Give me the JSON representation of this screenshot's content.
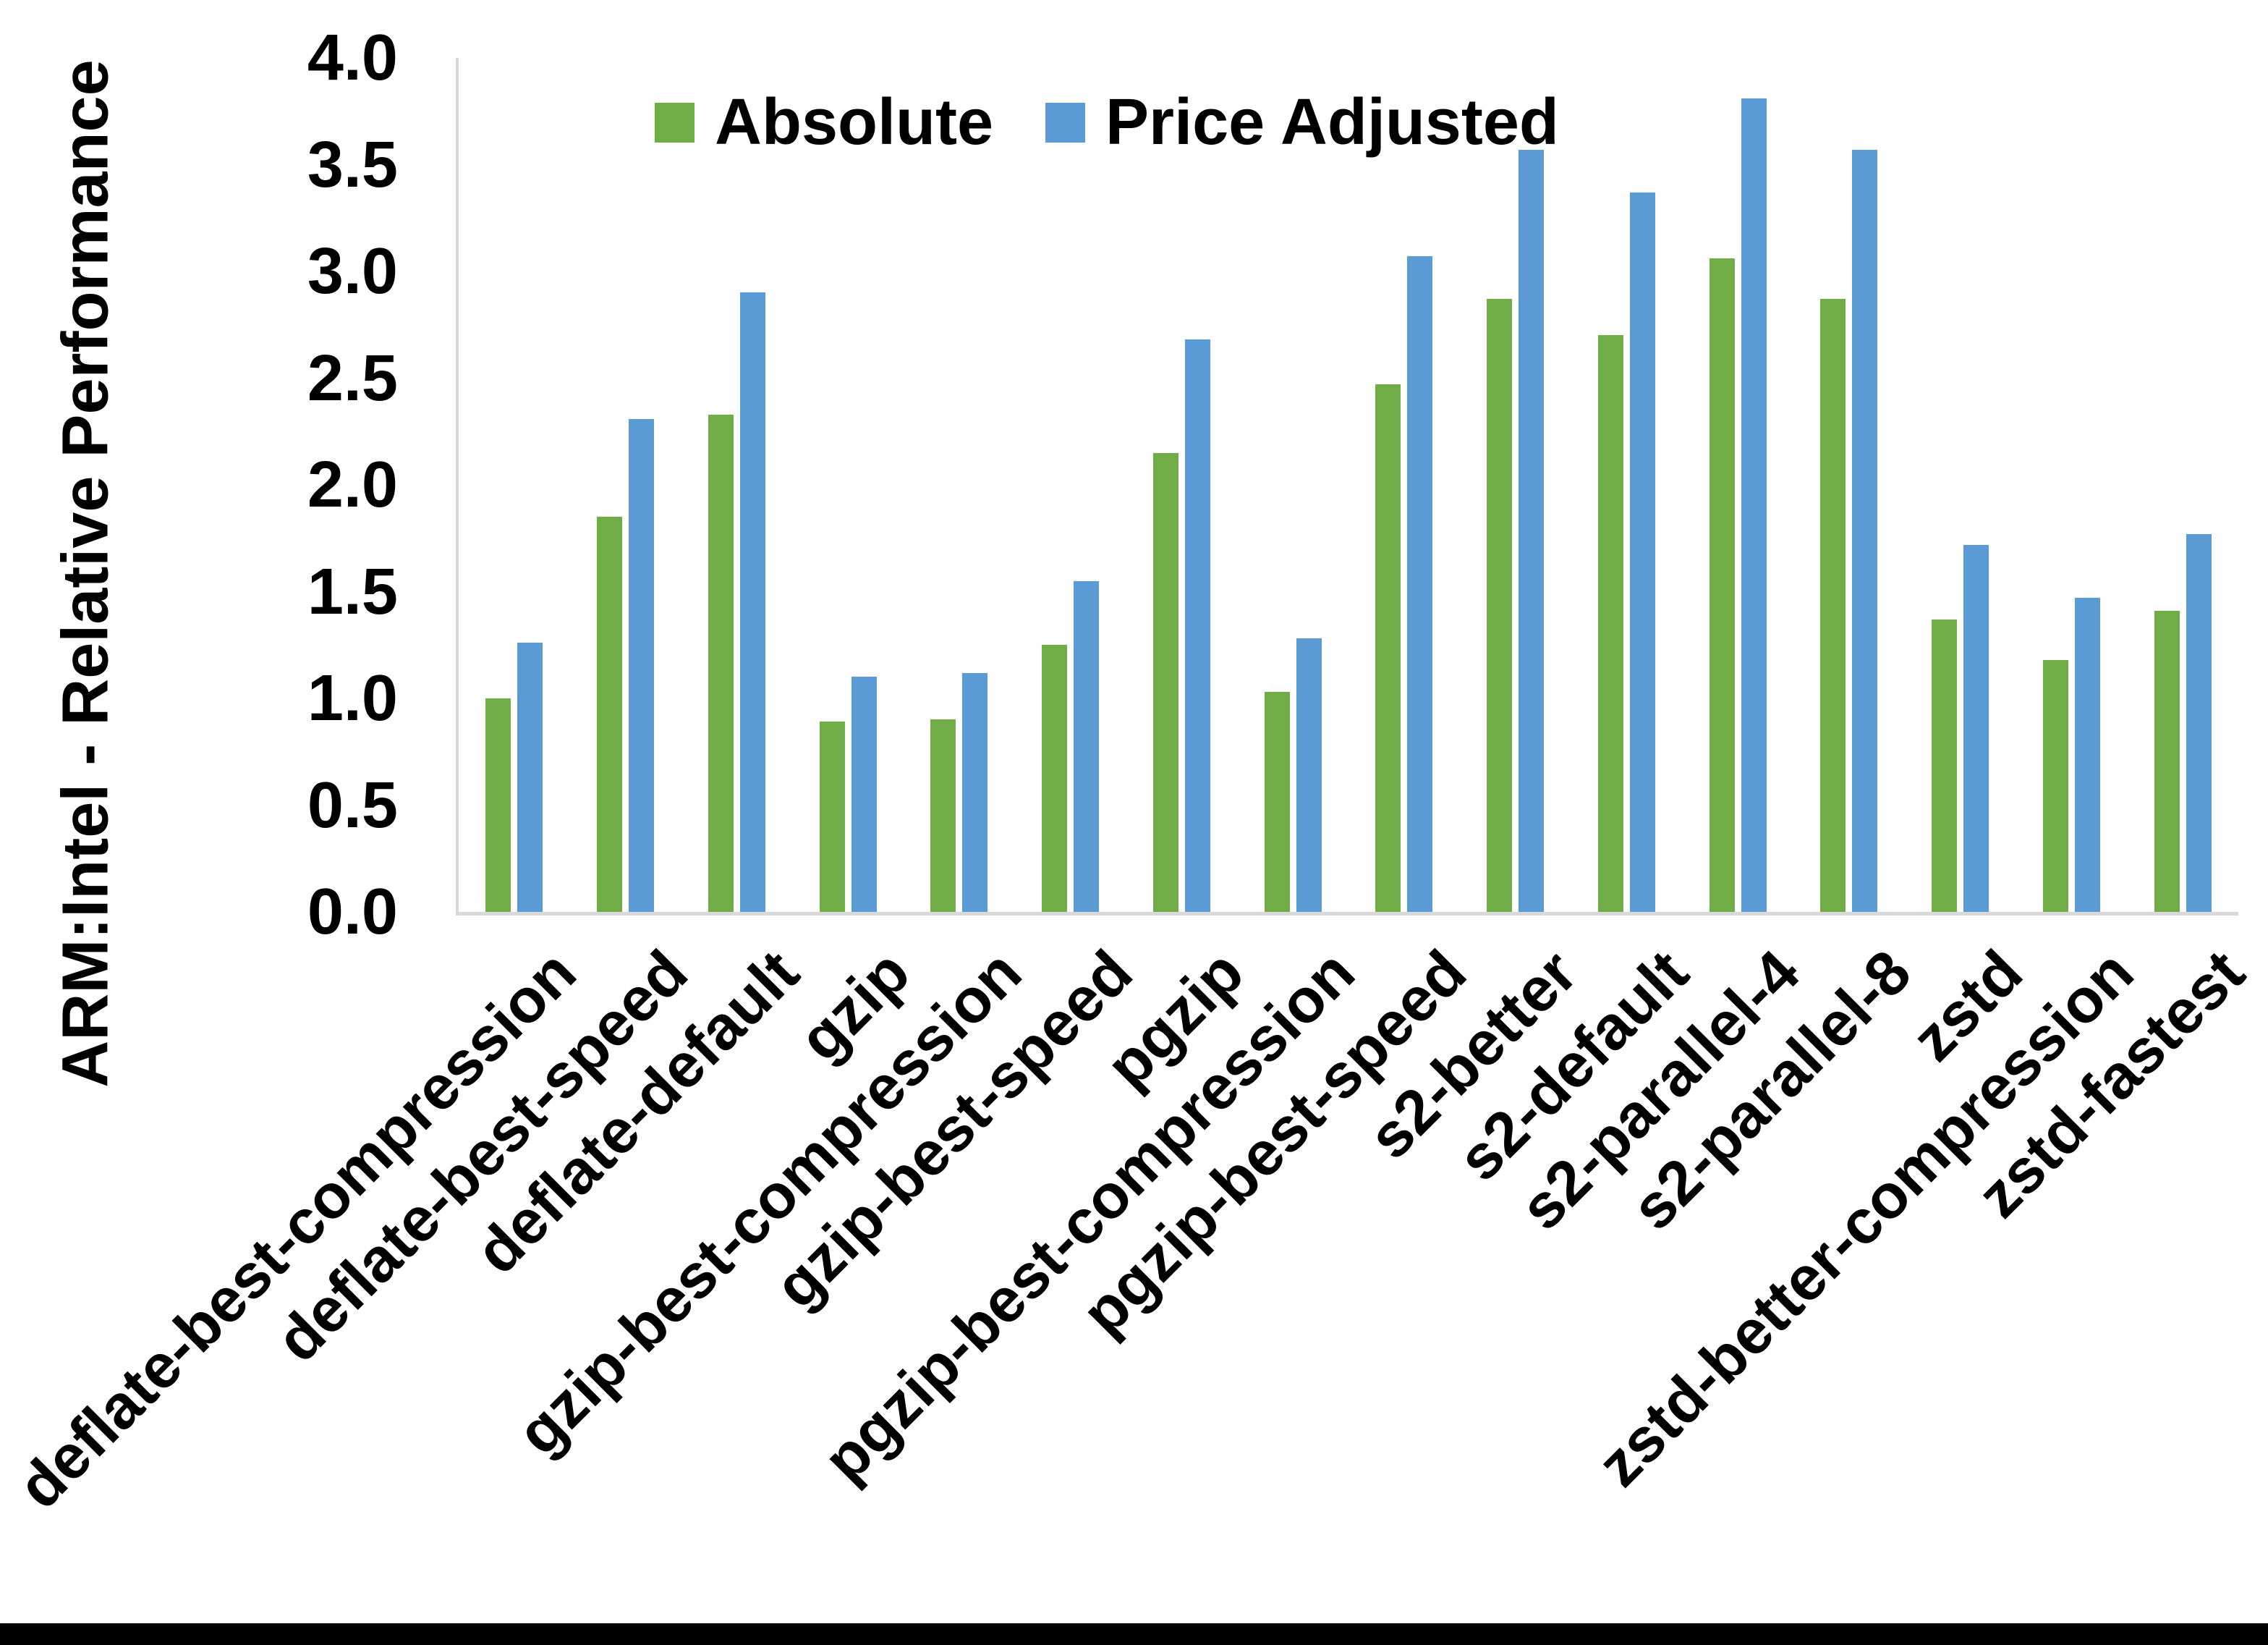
{
  "figure": {
    "y_axis_title": "ARM:Intel - Relative Performance",
    "colors": {
      "absolute": "#70AD47",
      "price_adjusted": "#5B9BD5",
      "axis_line": "#D9D9D9",
      "text": "#000000"
    }
  },
  "chart_data": {
    "type": "bar",
    "title": "",
    "xlabel": "",
    "ylabel": "ARM:Intel - Relative Performance",
    "ylim": [
      0.0,
      4.0
    ],
    "y_ticks": [
      "0.0",
      "0.5",
      "1.0",
      "1.5",
      "2.0",
      "2.5",
      "3.0",
      "3.5",
      "4.0"
    ],
    "grid": false,
    "legend_position": "top-center",
    "categories": [
      "deflate-best-compression",
      "deflate-best-speed",
      "deflate-default",
      "gzip",
      "gzip-best-compression",
      "gzip-best-speed",
      "pgzip",
      "pgzip-best-compression",
      "pgzip-best-speed",
      "s2-better",
      "s2-default",
      "s2-parallel-4",
      "s2-parallel-8",
      "zstd",
      "zstd-better-compression",
      "zstd-fastest"
    ],
    "series": [
      {
        "name": "Absolute",
        "color": "#70AD47",
        "values": [
          1.0,
          1.85,
          2.33,
          0.89,
          0.9,
          1.25,
          2.15,
          1.03,
          2.47,
          2.87,
          2.7,
          3.06,
          2.87,
          1.37,
          1.18,
          1.41
        ]
      },
      {
        "name": "Price Adjusted",
        "color": "#5B9BD5",
        "values": [
          1.26,
          2.31,
          2.9,
          1.1,
          1.12,
          1.55,
          2.68,
          1.28,
          3.07,
          3.57,
          3.37,
          3.81,
          3.57,
          1.72,
          1.47,
          1.77
        ]
      }
    ]
  }
}
